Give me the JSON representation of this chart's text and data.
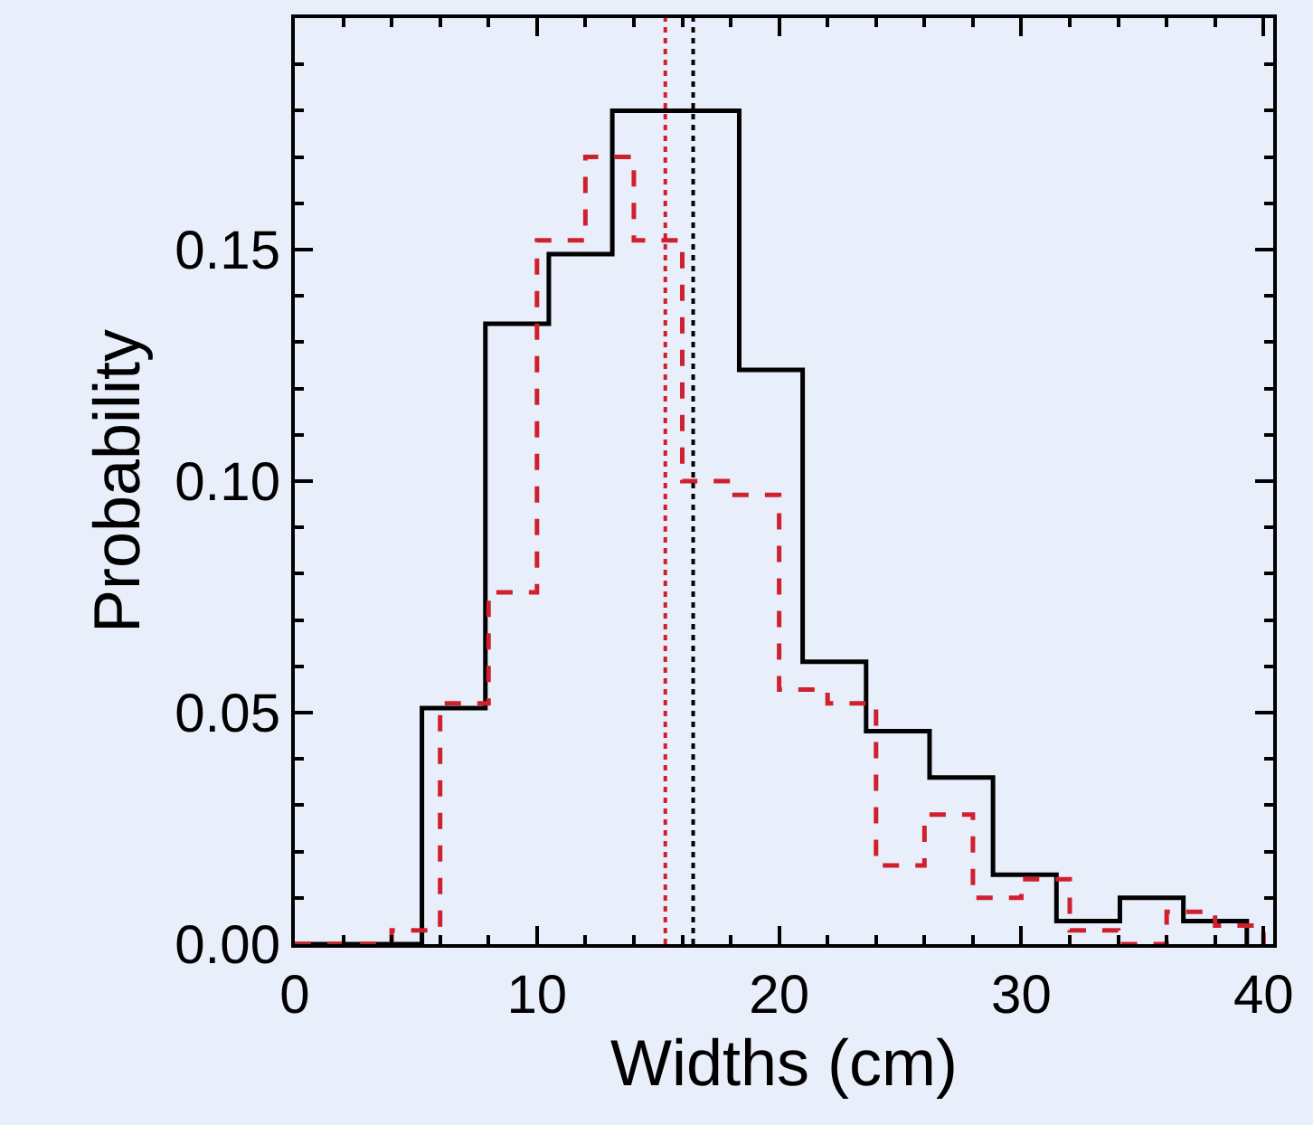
{
  "chart_data": {
    "type": "step",
    "xlabel": "Widths (cm)",
    "ylabel": "Probability",
    "series": [
      {
        "color": "#000000",
        "line_style": "solid",
        "x": [
          0,
          5.25,
          7.87,
          10.49,
          13.11,
          15.73,
          18.35,
          20.97,
          23.59,
          26.21,
          28.83,
          31.45,
          34.07,
          36.69,
          39.31
        ],
        "values": [
          0,
          0.051,
          0.134,
          0.149,
          0.18,
          0.18,
          0.124,
          0.061,
          0.046,
          0.036,
          0.015,
          0.005,
          0.01,
          0.005,
          0
        ]
      },
      {
        "color": "#d0202e",
        "line_style": "dashed",
        "x": [
          0,
          2,
          4,
          6,
          8,
          10,
          12,
          14,
          16,
          18,
          20,
          22,
          24,
          26,
          28,
          30,
          32,
          34,
          36,
          38,
          40
        ],
        "values": [
          0,
          0,
          0.003,
          0.052,
          0.076,
          0.152,
          0.17,
          0.152,
          0.1,
          0.097,
          0.055,
          0.052,
          0.017,
          0.028,
          0.01,
          0.014,
          0.003,
          0,
          0.007,
          0.004,
          0
        ]
      }
    ],
    "ref_lines": [
      {
        "axis": "x",
        "value": 15.3,
        "color": "#d0202e",
        "line_style": "dotted"
      },
      {
        "axis": "x",
        "value": 16.45,
        "color": "#000000",
        "line_style": "dotted"
      }
    ],
    "xlim": [
      0,
      40.4
    ],
    "ylim": [
      0,
      0.2
    ],
    "xticks": [
      0,
      10,
      20,
      30,
      40
    ],
    "yticks": [
      {
        "value": 0,
        "label": "0.00"
      },
      {
        "value": 0.05,
        "label": "0.05"
      },
      {
        "value": 0.1,
        "label": "0.10"
      },
      {
        "value": 0.15,
        "label": "0.15"
      }
    ],
    "grid": false
  }
}
